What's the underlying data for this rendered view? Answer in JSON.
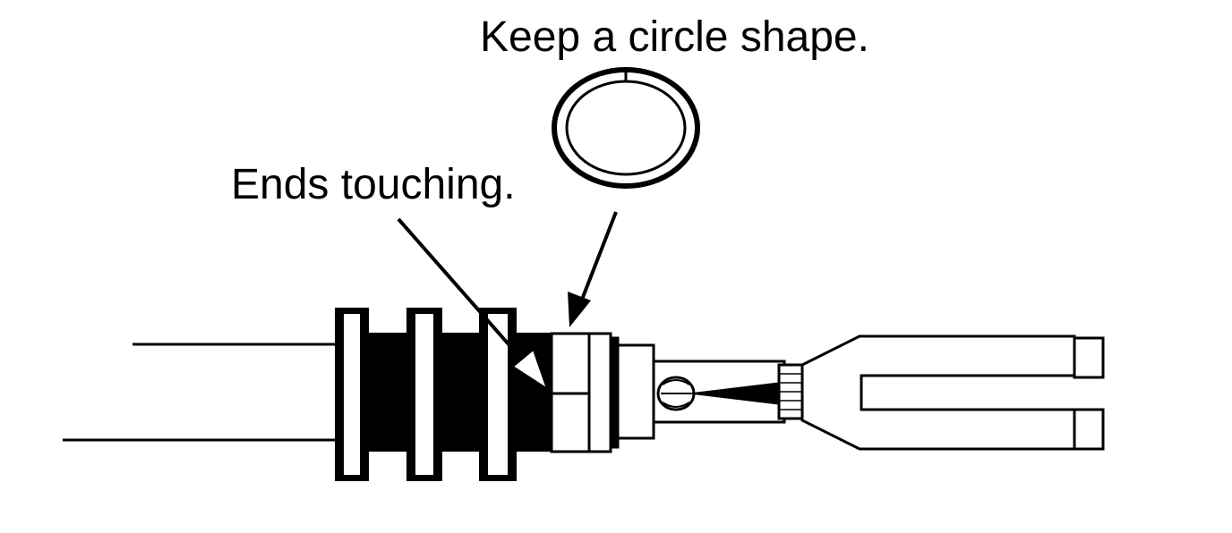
{
  "labels": {
    "keep_circle": "Keep a circle shape.",
    "ends_touching": "Ends touching."
  },
  "colors": {
    "ink": "#000000",
    "paper": "#ffffff"
  }
}
